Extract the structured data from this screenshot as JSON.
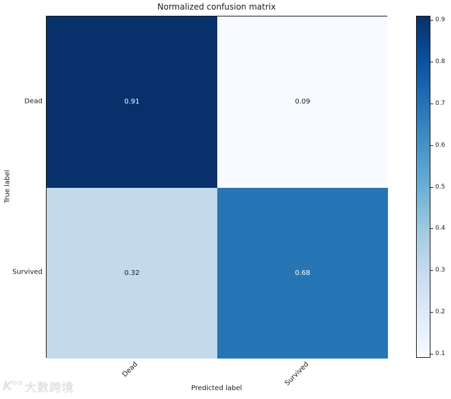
{
  "figure": {
    "title": "Normalized confusion matrix",
    "xlabel": "Predicted label",
    "ylabel": "True label"
  },
  "watermark": {
    "logo": "K°°",
    "text": "大数跨境"
  },
  "chart_data": {
    "type": "heatmap",
    "title": "Normalized confusion matrix",
    "xlabel": "Predicted label",
    "ylabel": "True label",
    "x_categories": [
      "Dead",
      "Survived"
    ],
    "y_categories": [
      "Dead",
      "Survived"
    ],
    "matrix": [
      [
        0.91,
        0.09
      ],
      [
        0.32,
        0.68
      ]
    ],
    "value_labels": [
      [
        "0.91",
        "0.09"
      ],
      [
        "0.32",
        "0.68"
      ]
    ],
    "colormap": "Blues",
    "vmin": 0.09,
    "vmax": 0.91,
    "grid": false,
    "legend_position": "colorbar-right",
    "cell_colors": [
      [
        "#08306b",
        "#f7fbff"
      ],
      [
        "#c3daec",
        "#2676b5"
      ]
    ],
    "cell_text_colors": [
      [
        "#ffffff",
        "#1a1a1a"
      ],
      [
        "#1a1a1a",
        "#ffffff"
      ]
    ],
    "colorbar": {
      "tick_labels": [
        "0.9",
        "0.8",
        "0.7",
        "0.6",
        "0.5",
        "0.4",
        "0.3",
        "0.2",
        "0.1"
      ],
      "tick_values": [
        0.9,
        0.8,
        0.7,
        0.6,
        0.5,
        0.4,
        0.3,
        0.2,
        0.1
      ],
      "gradient_stops_bottom_to_top": [
        "#f7fbff",
        "#deebf7",
        "#c6dbef",
        "#9ecae1",
        "#6baed6",
        "#4292c6",
        "#2171b5",
        "#08519c",
        "#08306b"
      ]
    }
  }
}
